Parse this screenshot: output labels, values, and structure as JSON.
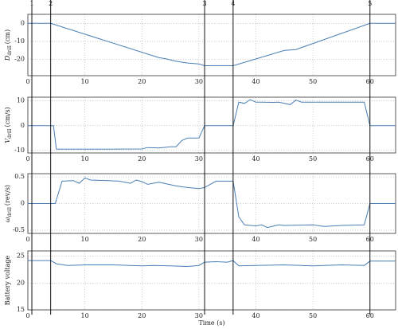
{
  "chart_data": [
    {
      "type": "line",
      "ylabel": {
        "symbol": "D",
        "subscript": "drill",
        "unit": "(cm)"
      },
      "color": "#4a7fb5",
      "x": [
        0,
        4,
        23,
        24,
        26,
        28,
        30,
        31,
        36,
        45,
        47,
        60,
        64.5
      ],
      "values": [
        0,
        0,
        -19,
        -19.5,
        -21,
        -22,
        -22.5,
        -23.5,
        -23.5,
        -15,
        -14.5,
        0,
        0
      ],
      "xlim": [
        0,
        64.5
      ],
      "xticks": [
        0,
        10,
        20,
        30,
        40,
        50,
        60
      ],
      "ylim": [
        -29,
        5
      ],
      "yticks": [
        -20,
        -10,
        0
      ],
      "grid": true
    },
    {
      "type": "line",
      "ylabel": {
        "symbol": "V",
        "subscript": "drill",
        "unit": "(cm/s)"
      },
      "color": "#4a7fb5",
      "x": [
        0,
        4.5,
        5,
        10,
        20,
        21,
        23,
        25,
        26,
        27,
        28,
        30,
        31,
        36,
        37,
        38,
        39,
        40,
        41,
        43,
        44,
        46,
        47,
        48,
        59,
        60,
        64.5
      ],
      "values": [
        0,
        0,
        -9.5,
        -9.5,
        -9.4,
        -8.8,
        -9,
        -8.5,
        -8.5,
        -6,
        -5,
        -5,
        0,
        0,
        9.5,
        9,
        10.5,
        9.5,
        9.5,
        9.4,
        9.5,
        8.5,
        10.3,
        9.5,
        9.5,
        0,
        0
      ],
      "xlim": [
        0,
        64.5
      ],
      "xticks": [
        0,
        10,
        20,
        30,
        40,
        50,
        60
      ],
      "ylim": [
        -11,
        11.5
      ],
      "yticks": [
        -10,
        0,
        10
      ],
      "grid": true
    },
    {
      "type": "line",
      "ylabel": {
        "symbol": "ω",
        "subscript": "drill",
        "unit": "(rev/s)"
      },
      "color": "#4a7fb5",
      "x": [
        0,
        4.8,
        6,
        8,
        9,
        10,
        11,
        14,
        16,
        18,
        19,
        20,
        21,
        23,
        26,
        28,
        30,
        31,
        33,
        36,
        37,
        38,
        40,
        41,
        42,
        44,
        45,
        50,
        52,
        55,
        59,
        60,
        64.5
      ],
      "values": [
        0,
        0,
        0.42,
        0.43,
        0.38,
        0.48,
        0.44,
        0.43,
        0.42,
        0.38,
        0.44,
        0.41,
        0.36,
        0.4,
        0.33,
        0.3,
        0.28,
        0.3,
        0.42,
        0.42,
        -0.25,
        -0.4,
        -0.42,
        -0.4,
        -0.45,
        -0.4,
        -0.41,
        -0.4,
        -0.43,
        -0.41,
        -0.4,
        0,
        0
      ],
      "xlim": [
        0,
        64.5
      ],
      "xticks": [
        0,
        10,
        20,
        30,
        40,
        50,
        60
      ],
      "ylim": [
        -0.56,
        0.56
      ],
      "yticks": [
        -0.5,
        0,
        0.5
      ],
      "grid": true
    },
    {
      "type": "line",
      "ylabel": {
        "text": "Battery voltage"
      },
      "xlabel": "Time (s)",
      "color": "#4a7fb5",
      "x": [
        0,
        4,
        5,
        7,
        10,
        15,
        20,
        22,
        25,
        28,
        30,
        31,
        33,
        35,
        36,
        37,
        40,
        45,
        50,
        52,
        55,
        59,
        60,
        64.5
      ],
      "values": [
        24.2,
        24.2,
        23.6,
        23.3,
        23.4,
        23.4,
        23.2,
        23.3,
        23.2,
        23.1,
        23.3,
        23.9,
        24,
        23.9,
        24.2,
        23.2,
        23.3,
        23.4,
        23.2,
        23.3,
        23.4,
        23.3,
        24.1,
        24.1
      ],
      "xlim": [
        0,
        64.5
      ],
      "xticks": [
        0,
        10,
        20,
        30,
        40,
        50,
        60
      ],
      "ylim": [
        15,
        26
      ],
      "yticks": [
        15,
        20,
        25
      ],
      "grid": true
    }
  ],
  "markers": [
    {
      "label": "1",
      "x": 0.7
    },
    {
      "label": "2",
      "x": 4
    },
    {
      "label": "3",
      "x": 31
    },
    {
      "label": "4",
      "x": 36
    },
    {
      "label": "5",
      "x": 60
    }
  ]
}
